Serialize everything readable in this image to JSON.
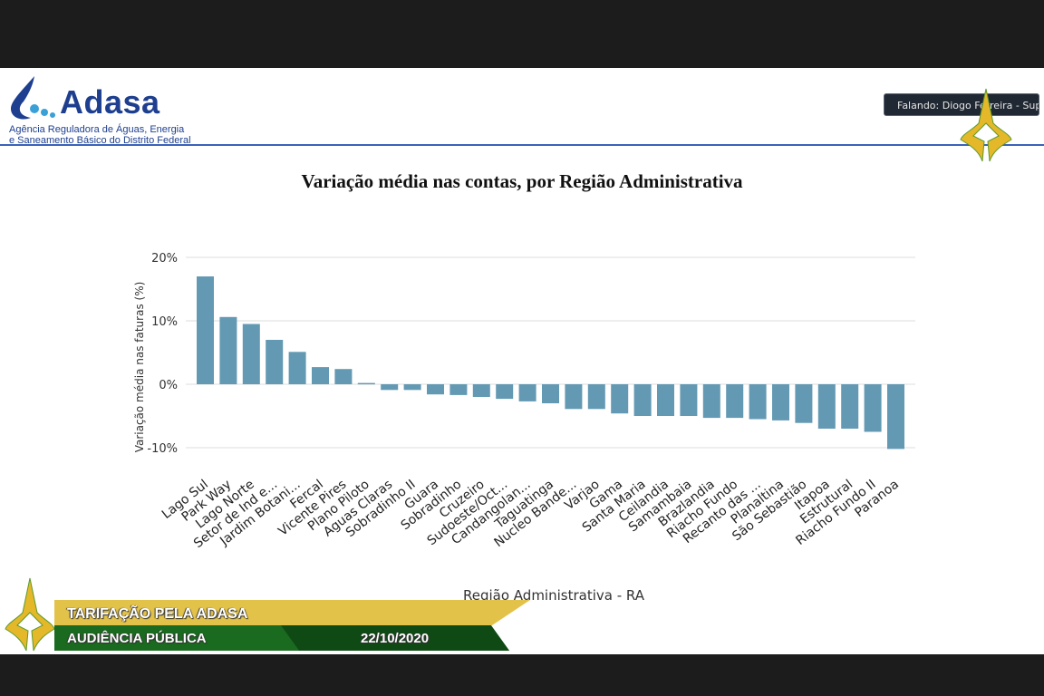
{
  "header": {
    "logo_word": "Adasa",
    "logo_subtitle_1": "Agência Reguladora de Águas, Energia",
    "logo_subtitle_2": "e Saneamento Básico do Distrito Federal"
  },
  "speaker_label": "Falando: Diogo Ferreira - Superi...",
  "banner": {
    "title": "TARIFAÇÃO PELA ADASA",
    "subtitle": "AUDIÊNCIA PÚBLICA",
    "date": "22/10/2020"
  },
  "colors": {
    "bar": "#6399b3",
    "header_line": "#3b64b8",
    "banner_gold": "#e3c24a",
    "banner_green": "#1a6a1f"
  },
  "chart_data": {
    "type": "bar",
    "title": "Variação média nas contas, por Região Administrativa",
    "xlabel": "Região Administrativa - RA",
    "ylabel": "Variação média nas faturas (%)",
    "ylim": [
      -10,
      20
    ],
    "yticks": [
      "20%",
      "10%",
      "0%",
      "-10%"
    ],
    "ytick_values": [
      20,
      10,
      0,
      -10
    ],
    "grid": true,
    "categories": [
      "Lago Sul",
      "Park Way",
      "Lago Norte",
      "Setor de Ind e...",
      "Jardim Botani...",
      "Fercal",
      "Vicente Pires",
      "Plano Piloto",
      "Aguas Claras",
      "Sobradinho II",
      "Guara",
      "Sobradinho",
      "Cruzeiro",
      "Sudoeste/Oct...",
      "Candangolan...",
      "Taguatinga",
      "Nucleo Bande...",
      "Varjao",
      "Gama",
      "Santa Maria",
      "Ceilandia",
      "Samambaia",
      "Brazlandia",
      "Riacho Fundo",
      "Recanto das ...",
      "Planaltina",
      "São Sebastião",
      "Itapoa",
      "Estrutural",
      "Riacho Fundo II",
      "Paranoa"
    ],
    "values": [
      17.0,
      10.6,
      9.5,
      7.0,
      5.1,
      2.7,
      2.4,
      0.2,
      -0.9,
      -0.9,
      -1.6,
      -1.7,
      -2.0,
      -2.3,
      -2.7,
      -3.0,
      -3.9,
      -3.9,
      -4.6,
      -5.0,
      -5.0,
      -5.0,
      -5.3,
      -5.3,
      -5.5,
      -5.7,
      -6.1,
      -7.0,
      -7.0,
      -7.5,
      -10.2
    ]
  }
}
